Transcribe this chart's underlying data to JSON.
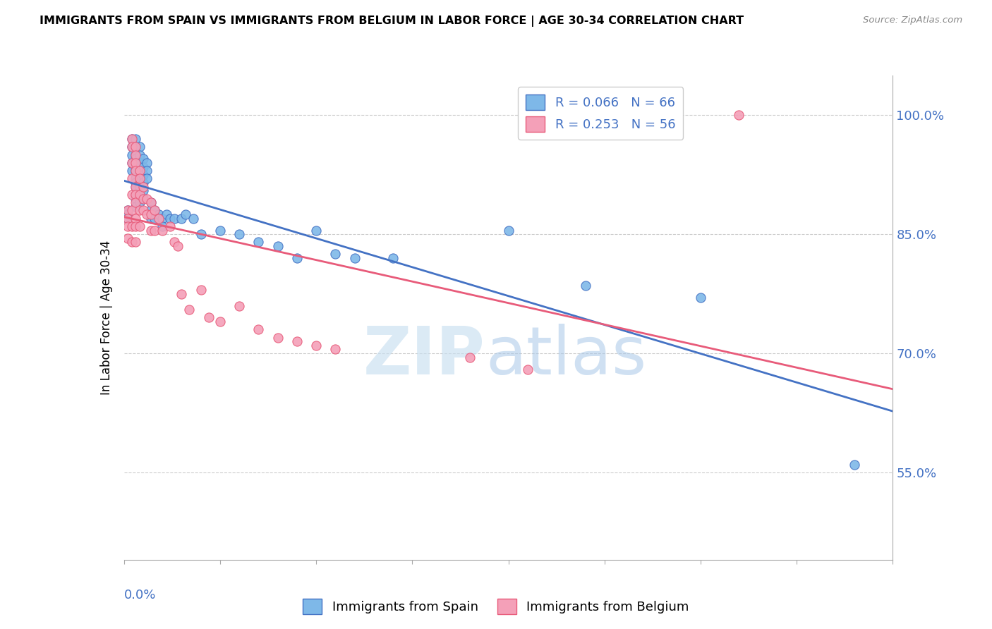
{
  "title": "IMMIGRANTS FROM SPAIN VS IMMIGRANTS FROM BELGIUM IN LABOR FORCE | AGE 30-34 CORRELATION CHART",
  "source": "Source: ZipAtlas.com",
  "ylabel": "In Labor Force | Age 30-34",
  "yticks": [
    0.55,
    0.7,
    0.85,
    1.0
  ],
  "ytick_labels": [
    "55.0%",
    "70.0%",
    "85.0%",
    "100.0%"
  ],
  "xmin": 0.0,
  "xmax": 0.2,
  "ymin": 0.44,
  "ymax": 1.05,
  "legend_r_spain": "0.066",
  "legend_n_spain": "66",
  "legend_r_belgium": "0.253",
  "legend_n_belgium": "56",
  "color_spain_fill": "#7EB8E8",
  "color_spain_edge": "#4472C4",
  "color_belgium_fill": "#F4A0B8",
  "color_belgium_edge": "#E85B7A",
  "color_blue": "#4472C4",
  "color_pink": "#E85B7A",
  "watermark_zip": "ZIP",
  "watermark_atlas": "atlas",
  "spain_x": [
    0.001,
    0.001,
    0.001,
    0.002,
    0.002,
    0.002,
    0.002,
    0.002,
    0.003,
    0.003,
    0.003,
    0.003,
    0.003,
    0.003,
    0.003,
    0.003,
    0.003,
    0.003,
    0.003,
    0.003,
    0.003,
    0.004,
    0.004,
    0.004,
    0.004,
    0.004,
    0.004,
    0.004,
    0.004,
    0.005,
    0.005,
    0.005,
    0.005,
    0.005,
    0.005,
    0.006,
    0.006,
    0.006,
    0.007,
    0.007,
    0.007,
    0.008,
    0.008,
    0.009,
    0.01,
    0.01,
    0.011,
    0.012,
    0.013,
    0.015,
    0.016,
    0.018,
    0.02,
    0.025,
    0.03,
    0.035,
    0.04,
    0.045,
    0.05,
    0.055,
    0.06,
    0.07,
    0.1,
    0.12,
    0.15,
    0.19
  ],
  "spain_y": [
    0.88,
    0.875,
    0.87,
    0.97,
    0.96,
    0.95,
    0.94,
    0.93,
    0.97,
    0.96,
    0.95,
    0.945,
    0.94,
    0.935,
    0.93,
    0.92,
    0.915,
    0.91,
    0.9,
    0.895,
    0.885,
    0.96,
    0.95,
    0.94,
    0.93,
    0.92,
    0.91,
    0.9,
    0.89,
    0.945,
    0.935,
    0.925,
    0.915,
    0.905,
    0.895,
    0.94,
    0.93,
    0.92,
    0.89,
    0.88,
    0.87,
    0.88,
    0.87,
    0.875,
    0.87,
    0.86,
    0.875,
    0.87,
    0.87,
    0.87,
    0.875,
    0.87,
    0.85,
    0.855,
    0.85,
    0.84,
    0.835,
    0.82,
    0.855,
    0.825,
    0.82,
    0.82,
    0.855,
    0.785,
    0.77,
    0.56
  ],
  "belgium_x": [
    0.001,
    0.001,
    0.001,
    0.001,
    0.002,
    0.002,
    0.002,
    0.002,
    0.002,
    0.002,
    0.002,
    0.002,
    0.003,
    0.003,
    0.003,
    0.003,
    0.003,
    0.003,
    0.003,
    0.003,
    0.003,
    0.003,
    0.004,
    0.004,
    0.004,
    0.004,
    0.004,
    0.005,
    0.005,
    0.005,
    0.006,
    0.006,
    0.007,
    0.007,
    0.007,
    0.008,
    0.008,
    0.009,
    0.01,
    0.012,
    0.013,
    0.014,
    0.015,
    0.017,
    0.02,
    0.022,
    0.025,
    0.03,
    0.035,
    0.04,
    0.045,
    0.05,
    0.055,
    0.09,
    0.105,
    0.16
  ],
  "belgium_y": [
    0.88,
    0.87,
    0.86,
    0.845,
    0.97,
    0.96,
    0.94,
    0.92,
    0.9,
    0.88,
    0.86,
    0.84,
    0.96,
    0.95,
    0.94,
    0.93,
    0.91,
    0.9,
    0.89,
    0.87,
    0.86,
    0.84,
    0.93,
    0.92,
    0.9,
    0.88,
    0.86,
    0.91,
    0.895,
    0.88,
    0.895,
    0.875,
    0.89,
    0.875,
    0.855,
    0.88,
    0.855,
    0.87,
    0.855,
    0.86,
    0.84,
    0.835,
    0.775,
    0.755,
    0.78,
    0.745,
    0.74,
    0.76,
    0.73,
    0.72,
    0.715,
    0.71,
    0.705,
    0.695,
    0.68,
    1.0
  ]
}
